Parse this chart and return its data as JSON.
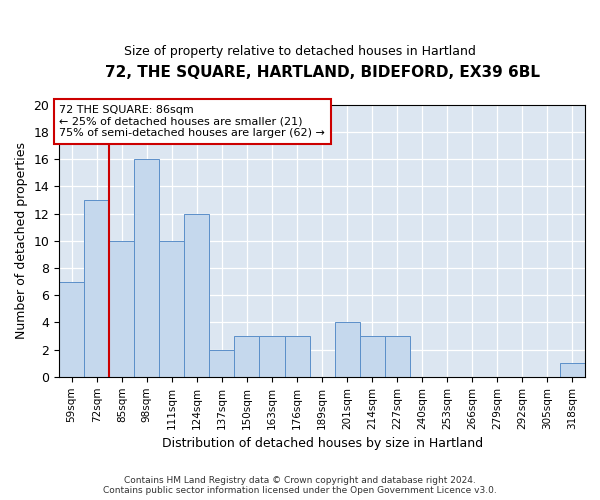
{
  "title": "72, THE SQUARE, HARTLAND, BIDEFORD, EX39 6BL",
  "subtitle": "Size of property relative to detached houses in Hartland",
  "xlabel": "Distribution of detached houses by size in Hartland",
  "ylabel": "Number of detached properties",
  "footer_line1": "Contains HM Land Registry data © Crown copyright and database right 2024.",
  "footer_line2": "Contains public sector information licensed under the Open Government Licence v3.0.",
  "bin_labels": [
    "59sqm",
    "72sqm",
    "85sqm",
    "98sqm",
    "111sqm",
    "124sqm",
    "137sqm",
    "150sqm",
    "163sqm",
    "176sqm",
    "189sqm",
    "201sqm",
    "214sqm",
    "227sqm",
    "240sqm",
    "253sqm",
    "266sqm",
    "279sqm",
    "292sqm",
    "305sqm",
    "318sqm"
  ],
  "values": [
    7,
    13,
    10,
    16,
    10,
    12,
    2,
    3,
    3,
    3,
    0,
    4,
    3,
    3,
    0,
    0,
    0,
    0,
    0,
    0,
    1
  ],
  "bar_color": "#c5d8ed",
  "bar_edge_color": "#5b8fc9",
  "background_color": "#dce6f1",
  "annotation_line1": "72 THE SQUARE: 86sqm",
  "annotation_line2": "← 25% of detached houses are smaller (21)",
  "annotation_line3": "75% of semi-detached houses are larger (62) →",
  "annotation_box_color": "#ffffff",
  "annotation_box_edge_color": "#cc0000",
  "red_line_x": 1.5,
  "ylim": [
    0,
    20
  ],
  "yticks": [
    0,
    2,
    4,
    6,
    8,
    10,
    12,
    14,
    16,
    18,
    20
  ]
}
